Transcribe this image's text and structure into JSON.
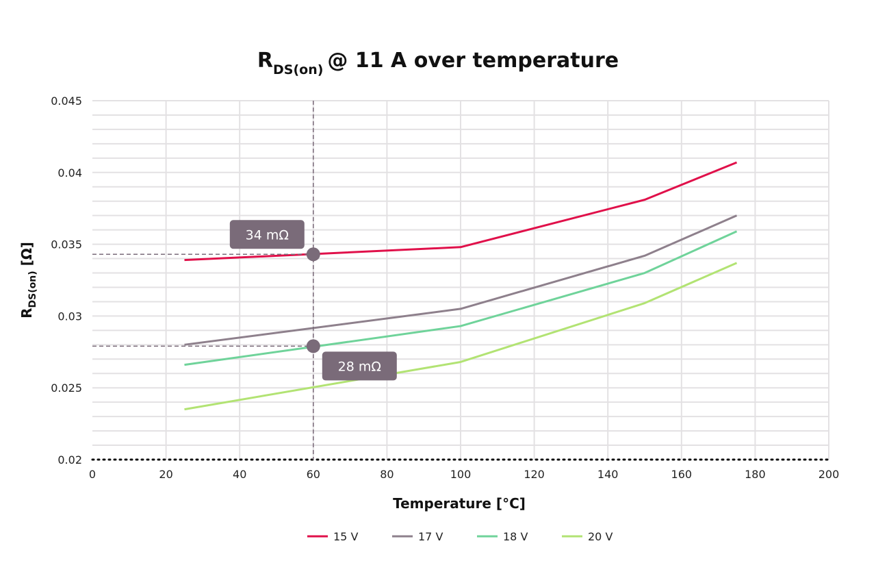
{
  "chart_data": {
    "type": "line",
    "title": {
      "main": "R",
      "sub": "DS(on)",
      "rest": "@ 11 A over temperature"
    },
    "xlabel": "Temperature [°C]",
    "ylabel": {
      "main": "R",
      "sub": "DS(on)",
      "rest": " [Ω]"
    },
    "xlim": [
      0,
      200
    ],
    "ylim": [
      0.02,
      0.045
    ],
    "xticks": [
      "0",
      "20",
      "40",
      "60",
      "80",
      "100",
      "120",
      "140",
      "160",
      "180",
      "200"
    ],
    "yticks": [
      "0.02",
      "0.025",
      "0.03",
      "0.035",
      "0.04",
      "0.045"
    ],
    "grid": true,
    "legend_position": "bottom",
    "series": [
      {
        "name": "15 V",
        "color": "#e0104a",
        "x": [
          25,
          100,
          150,
          175
        ],
        "y": [
          0.0339,
          0.0348,
          0.0381,
          0.0407
        ]
      },
      {
        "name": "17 V",
        "color": "#8e808c",
        "x": [
          25,
          100,
          150,
          175
        ],
        "y": [
          0.028,
          0.0305,
          0.0342,
          0.037
        ]
      },
      {
        "name": "18 V",
        "color": "#6fd39a",
        "x": [
          25,
          100,
          150,
          175
        ],
        "y": [
          0.0266,
          0.0293,
          0.033,
          0.0359
        ]
      },
      {
        "name": "20 V",
        "color": "#b2e373",
        "x": [
          25,
          100,
          150,
          175
        ],
        "y": [
          0.0235,
          0.0268,
          0.0309,
          0.0337
        ]
      }
    ],
    "annotations": [
      {
        "label": "34 mΩ",
        "x": 60,
        "y": 0.0343
      },
      {
        "label": "28 mΩ",
        "x": 60,
        "y": 0.0279
      }
    ],
    "annotation_color": "#7a6b79"
  }
}
